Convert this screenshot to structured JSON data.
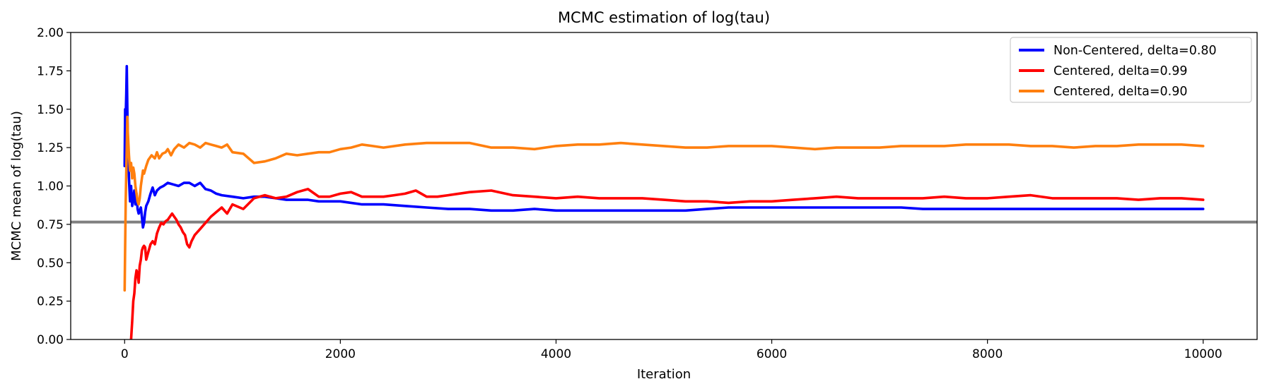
{
  "chart_data": {
    "type": "line",
    "title": "MCMC estimation of log(tau)",
    "xlabel": "Iteration",
    "ylabel": "MCMC mean of log(tau)",
    "xlim": [
      -500,
      10500
    ],
    "ylim": [
      0.0,
      2.0
    ],
    "xticks": [
      0,
      2000,
      4000,
      6000,
      8000,
      10000
    ],
    "xtick_labels": [
      "0",
      "2000",
      "4000",
      "6000",
      "8000",
      "10000"
    ],
    "yticks": [
      0.0,
      0.25,
      0.5,
      0.75,
      1.0,
      1.25,
      1.5,
      1.75,
      2.0
    ],
    "ytick_labels": [
      "0.00",
      "0.25",
      "0.50",
      "0.75",
      "1.00",
      "1.25",
      "1.50",
      "1.75",
      "2.00"
    ],
    "grid": false,
    "legend_position": "top-right",
    "reference_line": {
      "y": 0.765,
      "color": "#808080"
    },
    "series": [
      {
        "name": "Non-Centered, delta=0.80",
        "color": "#0000ff",
        "x": [
          0,
          5,
          10,
          15,
          20,
          25,
          30,
          40,
          50,
          60,
          70,
          80,
          90,
          100,
          110,
          120,
          130,
          140,
          150,
          160,
          170,
          180,
          190,
          200,
          220,
          240,
          260,
          280,
          300,
          330,
          360,
          400,
          450,
          500,
          550,
          600,
          650,
          700,
          750,
          800,
          850,
          900,
          1000,
          1100,
          1200,
          1300,
          1400,
          1500,
          1600,
          1700,
          1800,
          1900,
          2000,
          2200,
          2400,
          2600,
          2800,
          3000,
          3200,
          3400,
          3600,
          3800,
          4000,
          4200,
          4400,
          4600,
          4800,
          5000,
          5200,
          5400,
          5600,
          5800,
          6000,
          6200,
          6400,
          6600,
          6800,
          7000,
          7200,
          7400,
          7600,
          7800,
          8000,
          8200,
          8400,
          8600,
          8800,
          9000,
          9200,
          9400,
          9600,
          9800,
          10000
        ],
        "y": [
          1.13,
          1.5,
          1.45,
          1.6,
          1.78,
          1.5,
          1.3,
          1.05,
          0.9,
          1.0,
          0.87,
          0.92,
          0.97,
          0.88,
          0.95,
          0.85,
          0.82,
          0.84,
          0.86,
          0.8,
          0.73,
          0.76,
          0.83,
          0.87,
          0.9,
          0.95,
          0.99,
          0.94,
          0.97,
          0.99,
          1.0,
          1.02,
          1.01,
          1.0,
          1.02,
          1.02,
          1.0,
          1.02,
          0.98,
          0.97,
          0.95,
          0.94,
          0.93,
          0.92,
          0.93,
          0.93,
          0.92,
          0.91,
          0.91,
          0.91,
          0.9,
          0.9,
          0.9,
          0.88,
          0.88,
          0.87,
          0.86,
          0.85,
          0.85,
          0.84,
          0.84,
          0.85,
          0.84,
          0.84,
          0.84,
          0.84,
          0.84,
          0.84,
          0.84,
          0.85,
          0.86,
          0.86,
          0.86,
          0.86,
          0.86,
          0.86,
          0.86,
          0.86,
          0.86,
          0.85,
          0.85,
          0.85,
          0.85,
          0.85,
          0.85,
          0.85,
          0.85,
          0.85,
          0.85,
          0.85,
          0.85,
          0.85,
          0.85
        ]
      },
      {
        "name": "Centered, delta=0.99",
        "color": "#ff0000",
        "x": [
          60,
          65,
          70,
          80,
          90,
          100,
          110,
          120,
          130,
          140,
          150,
          160,
          170,
          180,
          190,
          200,
          220,
          240,
          260,
          280,
          300,
          320,
          340,
          360,
          380,
          400,
          420,
          440,
          460,
          480,
          500,
          520,
          540,
          560,
          580,
          600,
          620,
          650,
          700,
          750,
          800,
          850,
          900,
          950,
          1000,
          1100,
          1200,
          1300,
          1400,
          1500,
          1600,
          1700,
          1800,
          1900,
          2000,
          2100,
          2200,
          2300,
          2400,
          2500,
          2600,
          2700,
          2800,
          2900,
          3000,
          3200,
          3400,
          3600,
          3800,
          4000,
          4200,
          4400,
          4600,
          4800,
          5000,
          5200,
          5400,
          5600,
          5800,
          6000,
          6200,
          6400,
          6600,
          6800,
          7000,
          7200,
          7400,
          7600,
          7800,
          8000,
          8200,
          8400,
          8600,
          8800,
          9000,
          9200,
          9400,
          9600,
          9800,
          10000
        ],
        "y": [
          0.0,
          0.06,
          0.12,
          0.25,
          0.3,
          0.4,
          0.45,
          0.42,
          0.37,
          0.48,
          0.52,
          0.58,
          0.6,
          0.61,
          0.6,
          0.52,
          0.57,
          0.62,
          0.64,
          0.62,
          0.69,
          0.73,
          0.76,
          0.75,
          0.77,
          0.78,
          0.8,
          0.82,
          0.8,
          0.78,
          0.75,
          0.73,
          0.7,
          0.68,
          0.62,
          0.6,
          0.64,
          0.68,
          0.72,
          0.76,
          0.8,
          0.83,
          0.86,
          0.82,
          0.88,
          0.85,
          0.92,
          0.94,
          0.92,
          0.93,
          0.96,
          0.98,
          0.93,
          0.93,
          0.95,
          0.96,
          0.93,
          0.93,
          0.93,
          0.94,
          0.95,
          0.97,
          0.93,
          0.93,
          0.94,
          0.96,
          0.97,
          0.94,
          0.93,
          0.92,
          0.93,
          0.92,
          0.92,
          0.92,
          0.91,
          0.9,
          0.9,
          0.89,
          0.9,
          0.9,
          0.91,
          0.92,
          0.93,
          0.92,
          0.92,
          0.92,
          0.92,
          0.93,
          0.92,
          0.92,
          0.93,
          0.94,
          0.92,
          0.92,
          0.92,
          0.92,
          0.91,
          0.92,
          0.92,
          0.91
        ]
      },
      {
        "name": "Centered, delta=0.90",
        "color": "#ff7f0e",
        "x": [
          0,
          5,
          10,
          15,
          20,
          25,
          30,
          40,
          50,
          60,
          70,
          80,
          90,
          100,
          110,
          120,
          130,
          140,
          150,
          160,
          170,
          180,
          200,
          220,
          250,
          280,
          300,
          320,
          350,
          380,
          400,
          430,
          460,
          500,
          550,
          600,
          650,
          700,
          750,
          800,
          850,
          900,
          950,
          1000,
          1100,
          1200,
          1300,
          1400,
          1500,
          1600,
          1700,
          1800,
          1900,
          2000,
          2100,
          2200,
          2300,
          2400,
          2600,
          2800,
          3000,
          3200,
          3400,
          3600,
          3800,
          4000,
          4200,
          4400,
          4600,
          4800,
          5000,
          5200,
          5400,
          5600,
          5800,
          6000,
          6200,
          6400,
          6600,
          6800,
          7000,
          7200,
          7400,
          7600,
          7800,
          8000,
          8200,
          8400,
          8600,
          8800,
          9000,
          9200,
          9400,
          9600,
          9800,
          10000
        ],
        "y": [
          0.32,
          0.6,
          0.9,
          1.1,
          1.25,
          1.45,
          1.35,
          1.2,
          1.1,
          1.15,
          1.05,
          1.12,
          1.08,
          1.0,
          0.95,
          0.9,
          0.88,
          0.92,
          1.0,
          1.05,
          1.1,
          1.08,
          1.13,
          1.17,
          1.2,
          1.18,
          1.22,
          1.18,
          1.21,
          1.22,
          1.24,
          1.2,
          1.24,
          1.27,
          1.25,
          1.28,
          1.27,
          1.25,
          1.28,
          1.27,
          1.26,
          1.25,
          1.27,
          1.22,
          1.21,
          1.15,
          1.16,
          1.18,
          1.21,
          1.2,
          1.21,
          1.22,
          1.22,
          1.24,
          1.25,
          1.27,
          1.26,
          1.25,
          1.27,
          1.28,
          1.28,
          1.28,
          1.25,
          1.25,
          1.24,
          1.26,
          1.27,
          1.27,
          1.28,
          1.27,
          1.26,
          1.25,
          1.25,
          1.26,
          1.26,
          1.26,
          1.25,
          1.24,
          1.25,
          1.25,
          1.25,
          1.26,
          1.26,
          1.26,
          1.27,
          1.27,
          1.27,
          1.26,
          1.26,
          1.25,
          1.26,
          1.26,
          1.27,
          1.27,
          1.27,
          1.26
        ]
      }
    ]
  }
}
